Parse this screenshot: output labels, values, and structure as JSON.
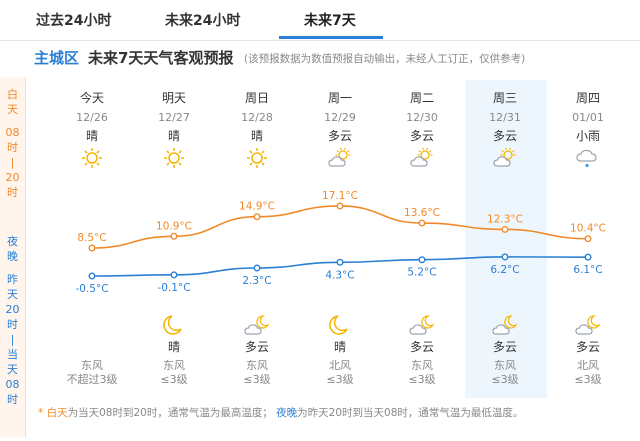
{
  "tabs": [
    {
      "label": "过去24小时",
      "active": false
    },
    {
      "label": "未来24小时",
      "active": false
    },
    {
      "label": "未来7天",
      "active": true
    }
  ],
  "header": {
    "city": "主城区",
    "title": "未来7天天气客观预报",
    "note": "(该预报数据为数值预报自动输出，未经人工订正，仅供参考)"
  },
  "side_labels": {
    "day": "白天08时|20时",
    "night_title": "夜晚",
    "night": "昨天20时|当天08时"
  },
  "colors": {
    "day": "#f08a2a",
    "night": "#2a7fd4",
    "highlight": "#eef6fd"
  },
  "days": [
    {
      "name": "今天",
      "date": "12/26",
      "day_weather": "晴",
      "day_icon": "sun-icon",
      "high": "8.5°C",
      "low": "-0.5°C",
      "night_weather": "",
      "night_icon": "",
      "wind_dir": "东风",
      "wind_level": "不超过3级"
    },
    {
      "name": "明天",
      "date": "12/27",
      "day_weather": "晴",
      "day_icon": "sun-icon",
      "high": "10.9°C",
      "low": "-0.1°C",
      "night_weather": "晴",
      "night_icon": "moon-icon",
      "wind_dir": "东风",
      "wind_level": "≤3级"
    },
    {
      "name": "周日",
      "date": "12/28",
      "day_weather": "晴",
      "day_icon": "sun-icon",
      "high": "14.9°C",
      "low": "2.3°C",
      "night_weather": "多云",
      "night_icon": "cloud-moon-icon",
      "wind_dir": "东风",
      "wind_level": "≤3级"
    },
    {
      "name": "周一",
      "date": "12/29",
      "day_weather": "多云",
      "day_icon": "cloud-sun-icon",
      "high": "17.1°C",
      "low": "4.3°C",
      "night_weather": "晴",
      "night_icon": "moon-icon",
      "wind_dir": "北风",
      "wind_level": "≤3级"
    },
    {
      "name": "周二",
      "date": "12/30",
      "day_weather": "多云",
      "day_icon": "cloud-sun-icon",
      "high": "13.6°C",
      "low": "5.2°C",
      "night_weather": "多云",
      "night_icon": "cloud-moon-icon",
      "wind_dir": "东风",
      "wind_level": "≤3级"
    },
    {
      "name": "周三",
      "date": "12/31",
      "day_weather": "多云",
      "day_icon": "cloud-sun-icon",
      "high": "12.3°C",
      "low": "6.2°C",
      "night_weather": "多云",
      "night_icon": "cloud-moon-icon",
      "wind_dir": "东风",
      "wind_level": "≤3级"
    },
    {
      "name": "周四",
      "date": "01/01",
      "day_weather": "小雨",
      "day_icon": "light-rain-icon",
      "high": "10.4°C",
      "low": "6.1°C",
      "night_weather": "多云",
      "night_icon": "cloud-moon-icon",
      "wind_dir": "北风",
      "wind_level": "≤3级"
    }
  ],
  "chart_data": {
    "type": "line",
    "x": [
      "12/26",
      "12/27",
      "12/28",
      "12/29",
      "12/30",
      "12/31",
      "01/01"
    ],
    "series": [
      {
        "values": [
          8.5,
          10.9,
          14.9,
          17.1,
          13.6,
          12.3,
          10.4
        ],
        "color": "#f08a2a"
      },
      {
        "values": [
          -0.5,
          -0.1,
          2.3,
          4.3,
          5.2,
          6.2,
          6.1
        ],
        "color": "#2a7fd4"
      }
    ],
    "grid": false
  },
  "footer": {
    "star": "*",
    "day_term": "白天",
    "day_desc": "为当天08时到20时，通常气温为最高温度；",
    "night_term": "夜晚",
    "night_desc": "为昨天20时到当天08时，通常气温为最低温度。"
  }
}
